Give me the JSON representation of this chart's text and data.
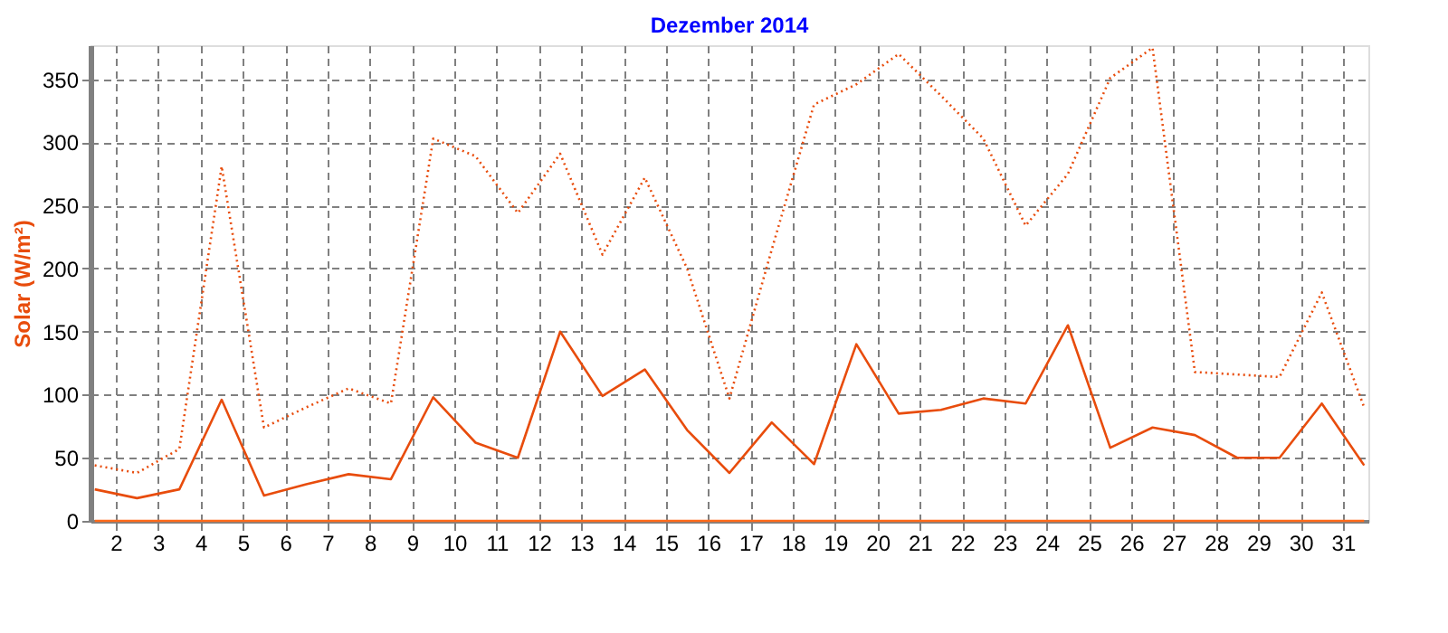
{
  "chart_data": {
    "type": "line",
    "title": "Dezember 2014",
    "ylabel": "Solar  (W/m²)",
    "x": [
      1.5,
      2.5,
      3.5,
      4.5,
      5.5,
      6.5,
      7.5,
      8.5,
      9.5,
      10.5,
      11.5,
      12.5,
      13.5,
      14.5,
      15.5,
      16.5,
      17.5,
      18.5,
      19.5,
      20.5,
      21.5,
      22.5,
      23.5,
      24.5,
      25.5,
      26.5,
      27.5,
      28.5,
      29.5,
      30.5,
      31.5
    ],
    "series": [
      {
        "color": "#e84c0c",
        "line_style": "dotted",
        "values": [
          44,
          38,
          57,
          281,
          74,
          90,
          105,
          93,
          303,
          289,
          244,
          291,
          211,
          272,
          200,
          97,
          215,
          330,
          346,
          370,
          337,
          303,
          234,
          275,
          351,
          375,
          118,
          116,
          114,
          181,
          90
        ]
      },
      {
        "color": "#e84c0c",
        "line_style": "solid",
        "values": [
          25,
          18,
          25,
          96,
          20,
          29,
          37,
          33,
          98,
          62,
          50,
          150,
          99,
          120,
          72,
          38,
          78,
          45,
          140,
          85,
          88,
          97,
          93,
          155,
          58,
          74,
          68,
          50,
          50,
          93,
          44
        ]
      },
      {
        "color": "#ff6a1a",
        "line_style": "solid",
        "values": [
          0,
          0,
          0,
          0,
          0,
          0,
          0,
          0,
          0,
          0,
          0,
          0,
          0,
          0,
          0,
          0,
          0,
          0,
          0,
          0,
          0,
          0,
          0,
          0,
          0,
          0,
          0,
          0,
          0,
          0,
          0
        ]
      }
    ],
    "xlim": [
      1.4,
      31.6
    ],
    "ylim": [
      0,
      377
    ],
    "xticks": [
      2,
      3,
      4,
      5,
      6,
      7,
      8,
      9,
      10,
      11,
      12,
      13,
      14,
      15,
      16,
      17,
      18,
      19,
      20,
      21,
      22,
      23,
      24,
      25,
      26,
      27,
      28,
      29,
      30,
      31
    ],
    "yticks": [
      0,
      50,
      100,
      150,
      200,
      250,
      300,
      350
    ],
    "grid": true,
    "legend": false,
    "marker": "none"
  }
}
